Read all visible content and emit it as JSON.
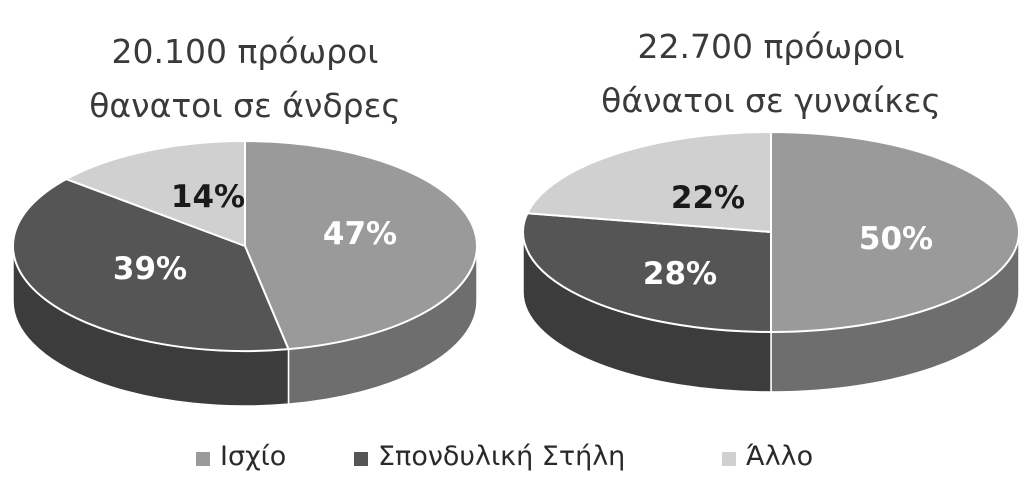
{
  "chart_data": [
    {
      "type": "pie",
      "title": [
        "20.100 πρόωροι",
        "θανατοι σε άνδρες"
      ],
      "categories": [
        "Ισχίο",
        "Σπονδυλική Στήλη",
        "Άλλο"
      ],
      "values": [
        47,
        39,
        14
      ],
      "labels": [
        "47%",
        "39%",
        "14%"
      ],
      "style": "3d-exploded-none"
    },
    {
      "type": "pie",
      "title": [
        "22.700 πρόωροι",
        "θάνατοι σε γυναίκες"
      ],
      "categories": [
        "Ισχίο",
        "Σπονδυλική Στήλη",
        "Άλλο"
      ],
      "values": [
        50,
        28,
        22
      ],
      "labels": [
        "50%",
        "28%",
        "22%"
      ],
      "style": "3d-exploded-none"
    }
  ],
  "legend": {
    "placement": "bottom",
    "items": [
      {
        "label": "Ισχίο",
        "color": "#9a9a9a"
      },
      {
        "label": "Σπονδυλική Στήλη",
        "color": "#555555"
      },
      {
        "label": "Άλλο",
        "color": "#d0d0d0"
      }
    ]
  },
  "colors": {
    "top": [
      "#9a9a9a",
      "#555555",
      "#d0d0d0"
    ],
    "side": [
      "#6e6e6e",
      "#3c3c3c",
      "#a8a8a8"
    ],
    "label_text": [
      "#ffffff",
      "#ffffff",
      "#1a1a1a"
    ]
  }
}
